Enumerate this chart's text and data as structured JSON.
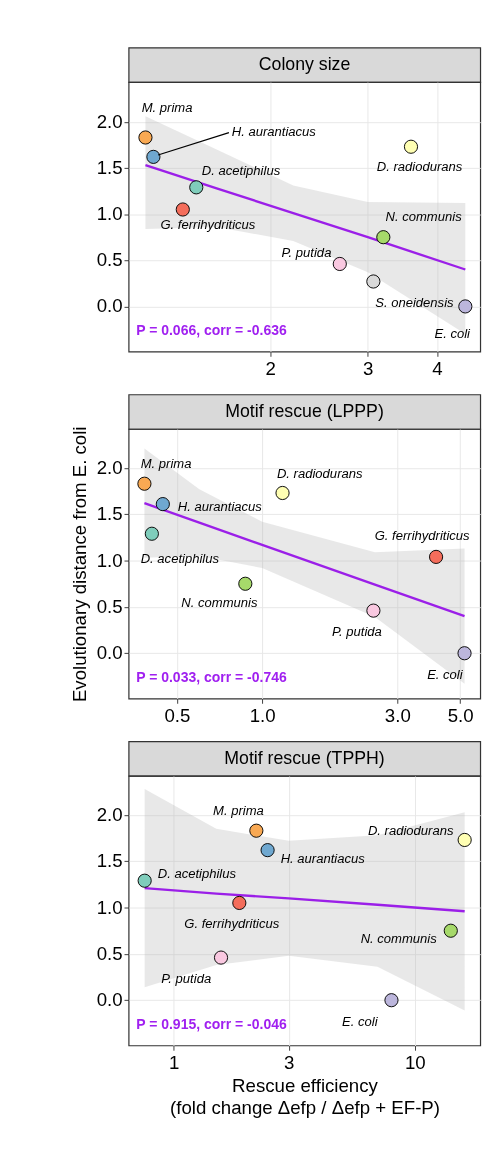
{
  "chart_data": [
    {
      "type": "scatter",
      "title": "Colony size",
      "log": "x",
      "grid": true,
      "xlim": [
        1.11,
        4.79
      ],
      "xticks": [
        2,
        3,
        4
      ],
      "ylim": [
        -0.49,
        2.43
      ],
      "yticks": [
        {
          "value": 0,
          "label": "0.0"
        },
        {
          "value": 0.5,
          "label": "0.5"
        },
        {
          "value": 1,
          "label": "1.0"
        },
        {
          "value": 1.5,
          "label": "1.5"
        },
        {
          "value": 2,
          "label": "2.0"
        }
      ],
      "series": [
        {
          "type": "line",
          "color": "#9b1fe8",
          "x": [
            1.19,
            1.6,
            2.2,
            3.0,
            4.5
          ],
          "values": [
            1.53,
            1.28,
            1.01,
            0.75,
            0.4
          ],
          "lower": [
            0.84,
            0.86,
            0.71,
            0.37,
            -0.3
          ],
          "upper": [
            2.06,
            1.7,
            1.31,
            1.13,
            1.12
          ]
        },
        {
          "type": "scatter",
          "marker": "circle",
          "x": [
            1.19,
            1.23,
            1.47,
            1.39,
            3.2,
            2.67,
            3.07,
            3.59,
            4.5
          ],
          "values": [
            1.83,
            1.62,
            1.29,
            1.05,
            0.75,
            0.46,
            0.27,
            1.73,
            0.0
          ],
          "colors": [
            "#f9a953",
            "#6fa8d0",
            "#7fcdbb",
            "#f46d5b",
            "#a6d96a",
            "#f9c8e0",
            "#d9d9d9",
            "#ffffb3",
            "#bcb6dc"
          ]
        }
      ],
      "annotations": [
        {
          "text": "M. prima",
          "x": 1.19,
          "y": 1.83
        },
        {
          "text": "H. aurantiacus",
          "x": 1.23,
          "y": 1.62
        },
        {
          "text": "D. acetiphilus",
          "x": 1.47,
          "y": 1.29
        },
        {
          "text": "G. ferrihydriticus",
          "x": 1.39,
          "y": 1.05
        },
        {
          "text": "N. communis",
          "x": 3.2,
          "y": 0.75
        },
        {
          "text": "P. putida",
          "x": 2.67,
          "y": 0.46
        },
        {
          "text": "S. oneidensis",
          "x": 3.07,
          "y": 0.27
        },
        {
          "text": "D. radiodurans",
          "x": 3.59,
          "y": 1.73
        },
        {
          "text": "E. coli",
          "x": 4.5,
          "y": 0.0
        },
        "P = 0.066, corr = -0.636"
      ]
    },
    {
      "type": "scatter",
      "title": "Motif rescue (LPPP)",
      "ylabel": "Evolutionary distance from E. coli",
      "log": "x",
      "grid": true,
      "xlim": [
        0.338,
        5.89
      ],
      "xticks": [
        0.5,
        {
          "value": 1,
          "label": "1.0"
        },
        {
          "value": 3,
          "label": "3.0"
        },
        {
          "value": 5,
          "label": "5.0"
        }
      ],
      "ylim": [
        -0.49,
        2.42
      ],
      "yticks": [
        {
          "value": 0,
          "label": "0.0"
        },
        {
          "value": 0.5,
          "label": "0.5"
        },
        {
          "value": 1,
          "label": "1.0"
        },
        {
          "value": 1.5,
          "label": "1.5"
        },
        {
          "value": 2,
          "label": "2.0"
        }
      ],
      "series": [
        {
          "type": "line",
          "color": "#9b1fe8",
          "x": [
            0.384,
            0.6,
            1.0,
            2.5,
            5.18
          ],
          "values": [
            1.62,
            1.41,
            1.17,
            0.74,
            0.4
          ],
          "lower": [
            1.03,
            1.05,
            0.92,
            0.39,
            -0.33
          ],
          "upper": [
            2.21,
            1.77,
            1.42,
            1.09,
            1.13
          ]
        },
        {
          "type": "scatter",
          "marker": "circle",
          "x": [
            0.384,
            0.446,
            0.408,
            1.18,
            0.872,
            4.11,
            2.47,
            5.18
          ],
          "values": [
            1.83,
            1.61,
            1.29,
            1.73,
            0.75,
            1.04,
            0.46,
            0.0
          ],
          "colors": [
            "#f9a953",
            "#6fa8d0",
            "#7fcdbb",
            "#ffffb3",
            "#a6d96a",
            "#f46d5b",
            "#f9c8e0",
            "#bcb6dc"
          ]
        }
      ],
      "annotations": [
        {
          "text": "M. prima",
          "x": 0.384,
          "y": 1.83
        },
        {
          "text": "H. aurantiacus",
          "x": 0.446,
          "y": 1.61
        },
        {
          "text": "D. acetiphilus",
          "x": 0.408,
          "y": 1.29
        },
        {
          "text": "D. radiodurans",
          "x": 1.18,
          "y": 1.73
        },
        {
          "text": "N. communis",
          "x": 0.872,
          "y": 0.75
        },
        {
          "text": "G. ferrihydriticus",
          "x": 4.11,
          "y": 1.04
        },
        {
          "text": "P. putida",
          "x": 2.47,
          "y": 0.46
        },
        {
          "text": "E. coli",
          "x": 5.18,
          "y": 0.0
        },
        "P = 0.033, corr = -0.746"
      ]
    },
    {
      "type": "scatter",
      "title": "Motif rescue (TPPH)",
      "xlabel": "Rescue efficiency\n(fold change Δefp / Δefp + EF-P)",
      "log": "x",
      "grid": true,
      "xlim": [
        0.65,
        18.7
      ],
      "xticks": [
        1,
        3,
        10
      ],
      "ylim": [
        -0.49,
        2.42
      ],
      "yticks": [
        {
          "value": 0,
          "label": "0.0"
        },
        {
          "value": 0.5,
          "label": "0.5"
        },
        {
          "value": 1,
          "label": "1.0"
        },
        {
          "value": 1.5,
          "label": "1.5"
        },
        {
          "value": 2,
          "label": "2.0"
        }
      ],
      "series": [
        {
          "type": "line",
          "color": "#9b1fe8",
          "x": [
            0.757,
            1.5,
            3.0,
            7.0,
            16.1
          ],
          "values": [
            1.21,
            1.15,
            1.1,
            1.03,
            0.96
          ],
          "lower": [
            0.14,
            0.38,
            0.48,
            0.36,
            -0.11
          ],
          "upper": [
            2.28,
            1.85,
            1.72,
            1.78,
            2.03
          ]
        },
        {
          "type": "scatter",
          "marker": "circle",
          "x": [
            0.757,
            2.2,
            2.45,
            1.87,
            1.57,
            8.0,
            14.1,
            16.1
          ],
          "values": [
            1.29,
            1.83,
            1.62,
            1.05,
            0.46,
            0.0,
            0.75,
            1.73
          ],
          "colors": [
            "#7fcdbb",
            "#f9a953",
            "#6fa8d0",
            "#f46d5b",
            "#f9c8e0",
            "#bcb6dc",
            "#a6d96a",
            "#ffffb3"
          ]
        }
      ],
      "annotations": [
        {
          "text": "D. acetiphilus",
          "x": 0.757,
          "y": 1.29
        },
        {
          "text": "M. prima",
          "x": 2.2,
          "y": 1.83
        },
        {
          "text": "H. aurantiacus",
          "x": 2.45,
          "y": 1.62
        },
        {
          "text": "G. ferrihydriticus",
          "x": 1.87,
          "y": 1.05
        },
        {
          "text": "P. putida",
          "x": 1.57,
          "y": 0.46
        },
        {
          "text": "E. coli",
          "x": 8.0,
          "y": 0.0
        },
        {
          "text": "N. communis",
          "x": 14.1,
          "y": 0.75
        },
        {
          "text": "D. radiodurans",
          "x": 16.1,
          "y": 1.73
        },
        "P = 0.915, corr = -0.046"
      ]
    }
  ]
}
